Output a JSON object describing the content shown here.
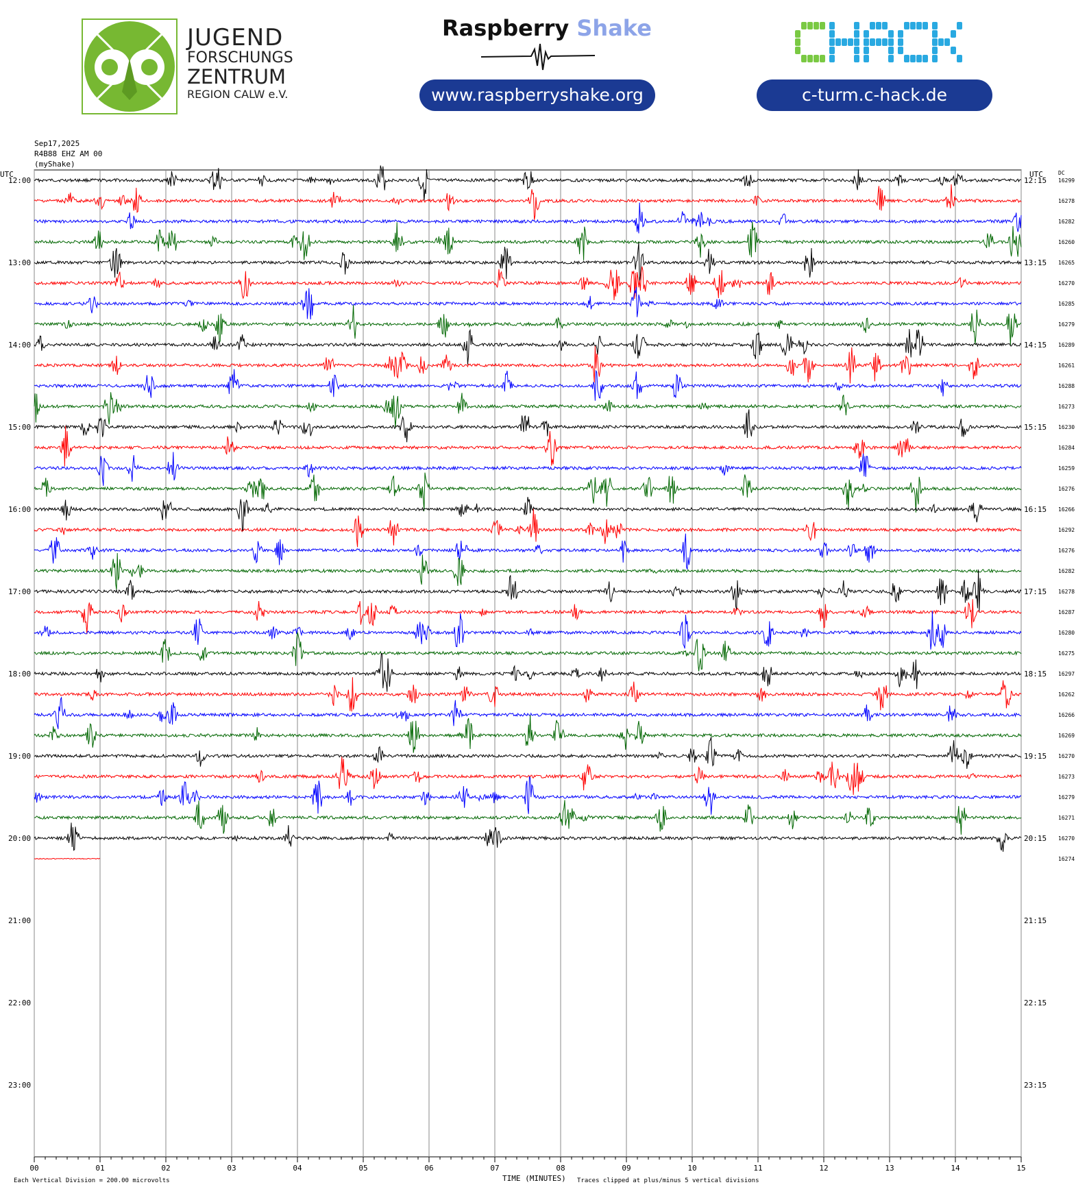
{
  "header": {
    "jfz": {
      "line1": "JUGEND",
      "line2": "FORSCHUNGS",
      "line3": "ZENTRUM",
      "line4": "REGION CALW e.V."
    },
    "rs_title_a": "Raspberry",
    "rs_title_b": "Shake",
    "rs_url": "www.raspberryshake.org",
    "chack_url": "c-turm.c-hack.de",
    "chack_letters": [
      "C",
      "H",
      "A",
      "C",
      "K"
    ]
  },
  "meta": {
    "date": "Sep17,2025",
    "station": "R4B88 EHZ AM 00",
    "source": "(myShake)",
    "utc_left": "UTC",
    "utc_right": "UTC",
    "dc_label": "DC"
  },
  "colors": {
    "trace_cycle": [
      "#000000",
      "#ff0000",
      "#0000ff",
      "#006600"
    ],
    "grid": "#888888",
    "pill": "#1b3a93",
    "rs_shake": "#8da4e8",
    "jfz_green": "#77b832",
    "chack_green": "#7ac943",
    "chack_blue": "#29a9e1"
  },
  "chart_data": {
    "type": "line",
    "title": "",
    "xlabel": "TIME (MINUTES)",
    "xlim": [
      0,
      15
    ],
    "x_ticks": [
      "00",
      "01",
      "02",
      "03",
      "04",
      "05",
      "06",
      "07",
      "08",
      "09",
      "10",
      "11",
      "12",
      "13",
      "14",
      "15"
    ],
    "left_hour_labels": [
      "12:00",
      "13:00",
      "14:00",
      "15:00",
      "16:00",
      "17:00",
      "18:00",
      "19:00",
      "20:00",
      "21:00",
      "22:00",
      "23:00"
    ],
    "right_hour_labels": [
      "12:15",
      "13:15",
      "14:15",
      "15:15",
      "16:15",
      "17:15",
      "18:15",
      "19:15",
      "20:15",
      "21:15",
      "22:15",
      "23:15"
    ],
    "rows_per_hour": 4,
    "dc_offsets": [
      "16299",
      "16278",
      "16282",
      "16260",
      "16265",
      "16270",
      "16285",
      "16279",
      "16289",
      "16261",
      "16288",
      "16273",
      "16230",
      "16284",
      "16259",
      "16276",
      "16266",
      "16292",
      "16276",
      "16282",
      "16278",
      "16287",
      "16280",
      "16275",
      "16297",
      "16262",
      "16266",
      "16269",
      "16270",
      "16273",
      "16279",
      "16271",
      "16270",
      "16274"
    ],
    "last_row_minutes": 1.0,
    "footer_left": "Each Vertical Division =  200.00 microvolts",
    "footer_right": "Traces clipped at plus/minus 5 vertical divisions"
  }
}
